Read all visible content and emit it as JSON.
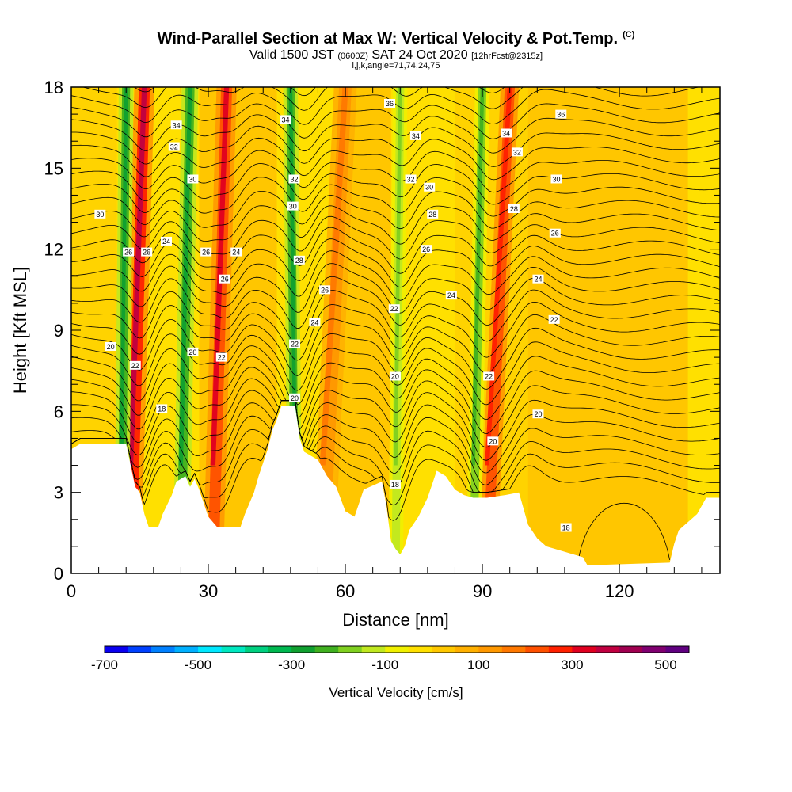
{
  "title": "Wind-Parallel Section at Max W: Vertical Velocity & Pot.Temp.",
  "title_mark": "(C)",
  "subtitle": {
    "valid": "Valid 1500 JST",
    "utc": "(0600Z)",
    "date": "SAT 24 Oct 2020",
    "fcst": "[12hrFcst@2315z]"
  },
  "subsubtitle": "i,j,k,angle=71,74,24,75",
  "chart_data": {
    "type": "heatmap",
    "title": "Wind-Parallel Section at Max W: Vertical Velocity & Pot.Temp.",
    "xlabel": "Distance [nm]",
    "ylabel": "Height [Kft MSL]",
    "xlim": [
      0,
      142
    ],
    "ylim": [
      0,
      18
    ],
    "x_ticks": [
      0,
      30,
      60,
      90,
      120
    ],
    "y_ticks": [
      0,
      3,
      6,
      9,
      12,
      15,
      18
    ],
    "colorbar": {
      "title": "Vertical Velocity [cm/s]",
      "tick_labels": [
        "-700",
        "-500",
        "-300",
        "-100",
        "100",
        "300",
        "500"
      ],
      "tick_values": [
        -700,
        -500,
        -300,
        -100,
        100,
        300,
        500
      ],
      "range": [
        -700,
        550
      ],
      "colors": [
        "#0a00f0",
        "#0040ff",
        "#0080ff",
        "#00b0ff",
        "#00e8ff",
        "#00e8c0",
        "#00d080",
        "#00b850",
        "#10a030",
        "#40b020",
        "#80d020",
        "#c0e820",
        "#f0f000",
        "#ffe000",
        "#ffc800",
        "#ffb000",
        "#ff9800",
        "#ff7800",
        "#ff5000",
        "#ff2000",
        "#e00020",
        "#c00040",
        "#a00050",
        "#800070",
        "#600080"
      ]
    },
    "terrain": [
      [
        0,
        4.6
      ],
      [
        2,
        4.8
      ],
      [
        12,
        4.8
      ],
      [
        14,
        3.2
      ],
      [
        15,
        3.0
      ],
      [
        16,
        2.2
      ],
      [
        17,
        1.7
      ],
      [
        19,
        1.7
      ],
      [
        20,
        2.2
      ],
      [
        22,
        2.9
      ],
      [
        23,
        3.4
      ],
      [
        25,
        3.6
      ],
      [
        26,
        3.2
      ],
      [
        27,
        3.5
      ],
      [
        28,
        3.1
      ],
      [
        30,
        2.1
      ],
      [
        32,
        1.7
      ],
      [
        37,
        1.7
      ],
      [
        38,
        2.2
      ],
      [
        40,
        3.0
      ],
      [
        41,
        3.6
      ],
      [
        43,
        4.6
      ],
      [
        44,
        5.3
      ],
      [
        45,
        5.7
      ],
      [
        46,
        6.2
      ],
      [
        49,
        6.2
      ],
      [
        50,
        5.0
      ],
      [
        51,
        4.5
      ],
      [
        54,
        4.2
      ],
      [
        56,
        3.6
      ],
      [
        58,
        3.2
      ],
      [
        60,
        2.3
      ],
      [
        62,
        2.1
      ],
      [
        64,
        3.1
      ],
      [
        68,
        3.4
      ],
      [
        69,
        2.5
      ],
      [
        70,
        1.2
      ],
      [
        71,
        0.9
      ],
      [
        72,
        0.7
      ],
      [
        73,
        1.0
      ],
      [
        74,
        1.6
      ],
      [
        76,
        2.1
      ],
      [
        78,
        2.8
      ],
      [
        80,
        3.8
      ],
      [
        82,
        3.6
      ],
      [
        84,
        3.1
      ],
      [
        86,
        2.9
      ],
      [
        88,
        2.8
      ],
      [
        91,
        2.8
      ],
      [
        95,
        2.9
      ],
      [
        98,
        3.0
      ],
      [
        99,
        2.4
      ],
      [
        100,
        1.8
      ],
      [
        102,
        1.3
      ],
      [
        104,
        1.0
      ],
      [
        106,
        0.9
      ],
      [
        112,
        0.6
      ],
      [
        113,
        0.3
      ],
      [
        131,
        0.4
      ],
      [
        132,
        1.1
      ],
      [
        133,
        1.6
      ],
      [
        137,
        2.2
      ],
      [
        139,
        2.8
      ],
      [
        142,
        2.8
      ]
    ],
    "updrafts": [
      {
        "x_base": 13,
        "x_top": 16,
        "w": 350,
        "width_nm": 2.2
      },
      {
        "x_base": 31,
        "x_top": 34,
        "w": 330,
        "width_nm": 2.2
      },
      {
        "x_base": 55,
        "x_top": 60,
        "w": 180,
        "width_nm": 2.5
      },
      {
        "x_base": 91,
        "x_top": 96,
        "w": 280,
        "width_nm": 2.0
      }
    ],
    "downdrafts": [
      {
        "x_base": 11,
        "x_top": 12,
        "w": -300,
        "width_nm": 1.6
      },
      {
        "x_base": 24,
        "x_top": 26,
        "w": -300,
        "width_nm": 1.8
      },
      {
        "x_base": 49,
        "x_top": 48,
        "w": -300,
        "width_nm": 1.6
      },
      {
        "x_base": 71,
        "x_top": 72,
        "w": -180,
        "width_nm": 1.6
      },
      {
        "x_base": 88,
        "x_top": 90,
        "w": -250,
        "width_nm": 1.6
      }
    ],
    "theta_levels": [
      18,
      20,
      22,
      24,
      26,
      28,
      30,
      32,
      34,
      36
    ],
    "contour_labels": [
      {
        "text": "34",
        "x": 23,
        "y": 16.6
      },
      {
        "text": "32",
        "x": 22.5,
        "y": 15.8
      },
      {
        "text": "30",
        "x": 6.3,
        "y": 13.3
      },
      {
        "text": "30",
        "x": 26.6,
        "y": 14.6
      },
      {
        "text": "24",
        "x": 20.8,
        "y": 12.3
      },
      {
        "text": "26",
        "x": 12.5,
        "y": 11.9
      },
      {
        "text": "26",
        "x": 16.5,
        "y": 11.9
      },
      {
        "text": "26",
        "x": 29.5,
        "y": 11.9
      },
      {
        "text": "24",
        "x": 36.1,
        "y": 11.9
      },
      {
        "text": "26",
        "x": 33.6,
        "y": 10.9
      },
      {
        "text": "20",
        "x": 8.6,
        "y": 8.4
      },
      {
        "text": "22",
        "x": 14,
        "y": 7.7
      },
      {
        "text": "20",
        "x": 26.6,
        "y": 8.2
      },
      {
        "text": "22",
        "x": 32.9,
        "y": 8.0
      },
      {
        "text": "18",
        "x": 19.8,
        "y": 6.1
      },
      {
        "text": "34",
        "x": 46.9,
        "y": 16.8
      },
      {
        "text": "32",
        "x": 48.8,
        "y": 14.6
      },
      {
        "text": "30",
        "x": 48.5,
        "y": 13.6
      },
      {
        "text": "28",
        "x": 49.9,
        "y": 11.6
      },
      {
        "text": "26",
        "x": 55.5,
        "y": 10.5
      },
      {
        "text": "24",
        "x": 53.3,
        "y": 9.3
      },
      {
        "text": "22",
        "x": 48.9,
        "y": 8.5
      },
      {
        "text": "20",
        "x": 48.9,
        "y": 6.5
      },
      {
        "text": "36",
        "x": 69.7,
        "y": 17.4
      },
      {
        "text": "34",
        "x": 75.4,
        "y": 16.2
      },
      {
        "text": "32",
        "x": 74.3,
        "y": 14.6
      },
      {
        "text": "30",
        "x": 78.4,
        "y": 14.3
      },
      {
        "text": "28",
        "x": 79.1,
        "y": 13.3
      },
      {
        "text": "26",
        "x": 77.7,
        "y": 12.0
      },
      {
        "text": "24",
        "x": 83.2,
        "y": 10.3
      },
      {
        "text": "22",
        "x": 70.7,
        "y": 9.8
      },
      {
        "text": "20",
        "x": 70.9,
        "y": 7.3
      },
      {
        "text": "18",
        "x": 70.9,
        "y": 3.3
      },
      {
        "text": "34",
        "x": 95.2,
        "y": 16.3
      },
      {
        "text": "32",
        "x": 97.6,
        "y": 15.6
      },
      {
        "text": "30",
        "x": 106.2,
        "y": 14.6
      },
      {
        "text": "28",
        "x": 96.9,
        "y": 13.5
      },
      {
        "text": "26",
        "x": 105.9,
        "y": 12.6
      },
      {
        "text": "24",
        "x": 102.2,
        "y": 10.9
      },
      {
        "text": "22",
        "x": 105.7,
        "y": 9.4
      },
      {
        "text": "22",
        "x": 91.4,
        "y": 7.3
      },
      {
        "text": "20",
        "x": 102.2,
        "y": 5.9
      },
      {
        "text": "20",
        "x": 92.3,
        "y": 4.9
      },
      {
        "text": "18",
        "x": 108.3,
        "y": 1.7
      },
      {
        "text": "36",
        "x": 107.2,
        "y": 17.0
      }
    ]
  }
}
